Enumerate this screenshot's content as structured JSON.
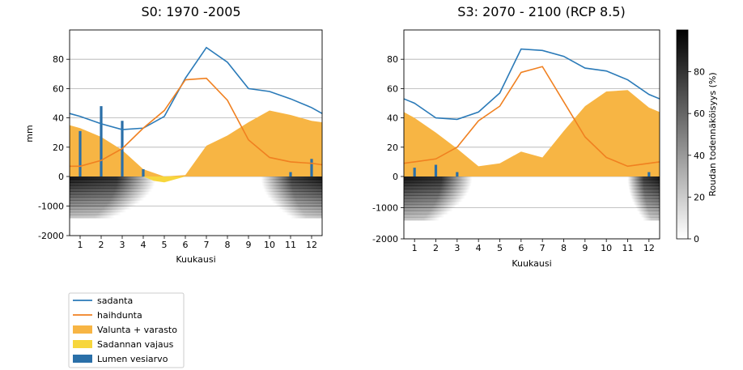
{
  "chart_data": [
    {
      "type": "area",
      "title": "S0: 1970 -2005",
      "xlabel": "Kuukausi",
      "ylabel": "mm",
      "xlim": [
        0.5,
        12.5
      ],
      "ylim": [
        -2000,
        100
      ],
      "month_ticks": [
        "1",
        "2",
        "3",
        "4",
        "5",
        "6",
        "7",
        "8",
        "9",
        "10",
        "11",
        "12"
      ],
      "y_ticks": [
        "80",
        "60",
        "40",
        "20",
        "0",
        "-1000",
        "-2000"
      ],
      "series": [
        {
          "name": "sadanta",
          "color": "#2a7ab8",
          "values": [
            [
              0.5,
              43
            ],
            [
              1,
              41
            ],
            [
              2,
              36
            ],
            [
              3,
              32
            ],
            [
              4,
              33
            ],
            [
              5,
              41
            ],
            [
              6,
              67
            ],
            [
              7,
              88
            ],
            [
              8,
              78
            ],
            [
              9,
              60
            ],
            [
              10,
              58
            ],
            [
              11,
              53
            ],
            [
              12,
              47
            ],
            [
              12.5,
              43
            ]
          ]
        },
        {
          "name": "haihdunta",
          "color": "#f08020",
          "values": [
            [
              0.5,
              7
            ],
            [
              1,
              7
            ],
            [
              2,
              11
            ],
            [
              3,
              19
            ],
            [
              4,
              33
            ],
            [
              5,
              45
            ],
            [
              6,
              66
            ],
            [
              7,
              67
            ],
            [
              8,
              52
            ],
            [
              9,
              25
            ],
            [
              10,
              13
            ],
            [
              11,
              10
            ],
            [
              12,
              9
            ],
            [
              12.5,
              8
            ]
          ]
        },
        {
          "name": "Valunta + varasto",
          "color": "#f7b544",
          "values": [
            [
              0.5,
              35
            ],
            [
              1,
              33
            ],
            [
              2,
              27
            ],
            [
              3,
              18
            ],
            [
              4,
              5
            ],
            [
              5,
              0
            ],
            [
              6,
              1
            ],
            [
              7,
              21
            ],
            [
              8,
              28
            ],
            [
              9,
              37
            ],
            [
              10,
              45
            ],
            [
              11,
              42
            ],
            [
              12,
              38
            ],
            [
              12.5,
              37
            ]
          ]
        },
        {
          "name": "Sadannan vajaus",
          "color": "#f7d63c",
          "values": [
            [
              4,
              0
            ],
            [
              4.5,
              -3
            ],
            [
              5,
              -4
            ],
            [
              5.5,
              -2
            ],
            [
              6,
              0
            ]
          ]
        },
        {
          "name": "Lumen vesiarvo",
          "color": "#2a6fa8",
          "values": [
            [
              1,
              31
            ],
            [
              2,
              48
            ],
            [
              3,
              38
            ],
            [
              4,
              5
            ],
            [
              11,
              3
            ],
            [
              12,
              12
            ]
          ]
        }
      ],
      "frost": {
        "ranges": [
          [
            0.5,
            4.6
          ],
          [
            9.6,
            12.5
          ]
        ]
      }
    },
    {
      "type": "area",
      "title": "S3: 2070 - 2100  (RCP 8.5)",
      "xlabel": "Kuukausi",
      "ylabel": "",
      "xlim": [
        0.5,
        12.5
      ],
      "ylim": [
        -2000,
        100
      ],
      "month_ticks": [
        "1",
        "2",
        "3",
        "4",
        "5",
        "6",
        "7",
        "8",
        "9",
        "10",
        "11",
        "12"
      ],
      "y_ticks": [
        "80",
        "60",
        "40",
        "20",
        "0",
        "-1000",
        "-2000"
      ],
      "series": [
        {
          "name": "sadanta",
          "color": "#2a7ab8",
          "values": [
            [
              0.5,
              53
            ],
            [
              1,
              50
            ],
            [
              2,
              40
            ],
            [
              3,
              39
            ],
            [
              4,
              44
            ],
            [
              5,
              57
            ],
            [
              6,
              87
            ],
            [
              7,
              86
            ],
            [
              8,
              82
            ],
            [
              9,
              74
            ],
            [
              10,
              72
            ],
            [
              11,
              66
            ],
            [
              12,
              56
            ],
            [
              12.5,
              53
            ]
          ]
        },
        {
          "name": "haihdunta",
          "color": "#f08020",
          "values": [
            [
              0.5,
              9
            ],
            [
              1,
              10
            ],
            [
              2,
              12
            ],
            [
              3,
              20
            ],
            [
              4,
              38
            ],
            [
              5,
              48
            ],
            [
              6,
              71
            ],
            [
              7,
              75
            ],
            [
              8,
              51
            ],
            [
              9,
              27
            ],
            [
              10,
              13
            ],
            [
              11,
              7
            ],
            [
              12,
              9
            ],
            [
              12.5,
              10
            ]
          ]
        },
        {
          "name": "Valunta + varasto",
          "color": "#f7b544",
          "values": [
            [
              0.5,
              44
            ],
            [
              1,
              40
            ],
            [
              2,
              30
            ],
            [
              3,
              19
            ],
            [
              4,
              7
            ],
            [
              5,
              9
            ],
            [
              6,
              17
            ],
            [
              7,
              13
            ],
            [
              8,
              31
            ],
            [
              9,
              48
            ],
            [
              10,
              58
            ],
            [
              11,
              59
            ],
            [
              12,
              47
            ],
            [
              12.5,
              44
            ]
          ]
        },
        {
          "name": "Lumen vesiarvo",
          "color": "#2a6fa8",
          "values": [
            [
              1,
              6
            ],
            [
              2,
              8
            ],
            [
              3,
              3
            ],
            [
              12,
              3
            ]
          ]
        }
      ],
      "frost": {
        "ranges": [
          [
            0.5,
            3.7
          ],
          [
            11.0,
            12.5
          ]
        ]
      }
    }
  ],
  "colorbar": {
    "label": "Roudan todennäköisyys (%)",
    "ticks": [
      "80",
      "60",
      "40",
      "20",
      "0"
    ],
    "range": [
      0,
      100
    ]
  },
  "legend": {
    "items": [
      {
        "label": "sadanta",
        "kind": "line",
        "color": "#2a7ab8"
      },
      {
        "label": "haihdunta",
        "kind": "line",
        "color": "#f08020"
      },
      {
        "label": "Valunta + varasto",
        "kind": "patch",
        "color": "#f7b544"
      },
      {
        "label": "Sadannan vajaus",
        "kind": "patch",
        "color": "#f7d63c"
      },
      {
        "label": "Lumen vesiarvo",
        "kind": "patch",
        "color": "#2a6fa8"
      }
    ]
  }
}
